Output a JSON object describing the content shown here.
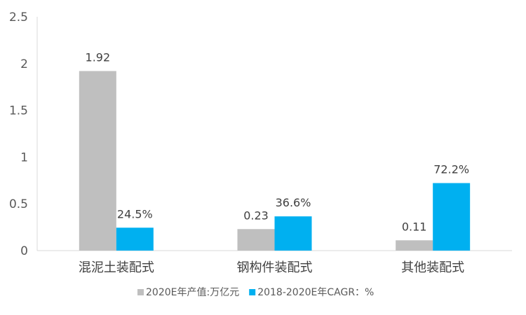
{
  "chart_data": {
    "type": "bar",
    "title": "",
    "xlabel": "",
    "ylabel": "",
    "categories": [
      "混泥土装配式",
      "钢构件装配式",
      "其他装配式"
    ],
    "ylim": [
      0,
      2.5
    ],
    "yticks": [
      "0",
      "0.5",
      "1",
      "1.5",
      "2",
      "2.5"
    ],
    "grid": false,
    "legend_position": "bottom",
    "series": [
      {
        "name": "2020E年产值:万亿元",
        "color": "#BFBFBF",
        "values": [
          1.92,
          0.23,
          0.11
        ],
        "labels": [
          "1.92",
          "0.23",
          "0.11"
        ]
      },
      {
        "name": "2018-2020E年CAGR：%",
        "color": "#00B0F0",
        "values": [
          0.245,
          0.366,
          0.722
        ],
        "labels": [
          "24.5%",
          "36.6%",
          "72.2%"
        ]
      }
    ]
  }
}
